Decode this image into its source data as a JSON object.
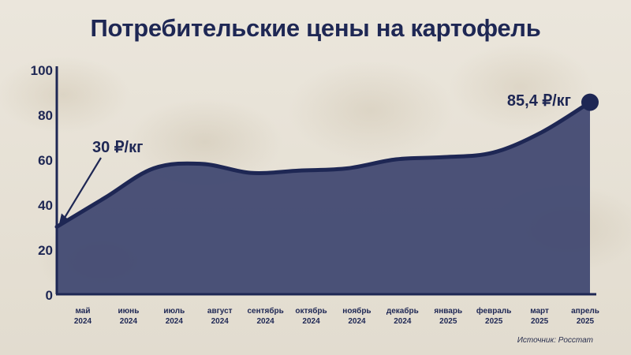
{
  "chart_data": {
    "type": "area",
    "title": "Потребительские цены на картофель",
    "categories": [
      [
        "май",
        "2024"
      ],
      [
        "июнь",
        "2024"
      ],
      [
        "июль",
        "2024"
      ],
      [
        "август",
        "2024"
      ],
      [
        "сентябрь",
        "2024"
      ],
      [
        "октябрь",
        "2024"
      ],
      [
        "ноябрь",
        "2024"
      ],
      [
        "декабрь",
        "2024"
      ],
      [
        "январь",
        "2025"
      ],
      [
        "февраль",
        "2025"
      ],
      [
        "март",
        "2025"
      ],
      [
        "апрель",
        "2025"
      ]
    ],
    "values": [
      30,
      43,
      56,
      58,
      54,
      55,
      56,
      60,
      61,
      63,
      72,
      85.4
    ],
    "ylim": [
      0,
      100
    ],
    "yticks": [
      0,
      20,
      40,
      60,
      80,
      100
    ],
    "grid": false,
    "annotations": [
      {
        "text": "30 ₽/кг",
        "index": 0,
        "style": "arrow"
      },
      {
        "text": "85,4 ₽/кг",
        "index": 11,
        "style": "dot"
      }
    ],
    "colors": {
      "area": "#3e4670",
      "line": "#1e2754",
      "text": "#1e2754"
    }
  },
  "source": "Источник: Росстат"
}
